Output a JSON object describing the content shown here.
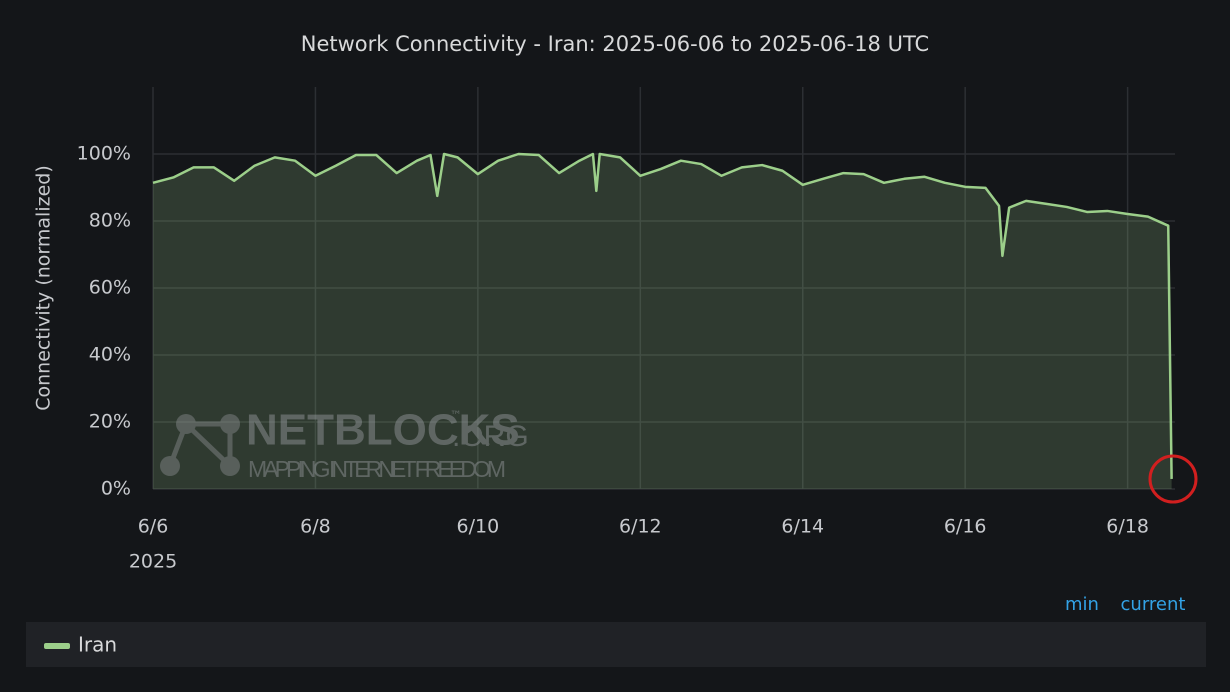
{
  "chart_data": {
    "type": "line",
    "title": "Network Connectivity - Iran: 2025-06-06 to 2025-06-18 UTC",
    "y_label": "Connectivity (normalized)",
    "x_sublabel": "2025",
    "watermark": {
      "name": "NETBLOCKS",
      "suffix": ".ORG",
      "mark": "™",
      "tagline": "MAPPING INTERNET FREEDOM"
    },
    "legend_columns": [
      "min",
      "current"
    ],
    "xlim": [
      "2025-06-06T00:00Z",
      "2025-06-18T14:00Z"
    ],
    "xticks": [
      {
        "value": "2025-06-06T00:00Z",
        "label": "6/6"
      },
      {
        "value": "2025-06-08T00:00Z",
        "label": "6/8"
      },
      {
        "value": "2025-06-10T00:00Z",
        "label": "6/10"
      },
      {
        "value": "2025-06-12T00:00Z",
        "label": "6/12"
      },
      {
        "value": "2025-06-14T00:00Z",
        "label": "6/14"
      },
      {
        "value": "2025-06-16T00:00Z",
        "label": "6/16"
      },
      {
        "value": "2025-06-18T00:00Z",
        "label": "6/18"
      }
    ],
    "ylim": [
      0,
      120
    ],
    "yticks": [
      {
        "value": 0,
        "label": "0%"
      },
      {
        "value": 20,
        "label": "20%"
      },
      {
        "value": 40,
        "label": "40%"
      },
      {
        "value": 60,
        "label": "60%"
      },
      {
        "value": 80,
        "label": "80%"
      },
      {
        "value": 100,
        "label": "100%"
      }
    ],
    "grid": true,
    "x": [
      "2025-06-06T00:00Z",
      "2025-06-06T06:00Z",
      "2025-06-06T12:00Z",
      "2025-06-06T18:00Z",
      "2025-06-07T00:00Z",
      "2025-06-07T06:00Z",
      "2025-06-07T12:00Z",
      "2025-06-07T18:00Z",
      "2025-06-08T00:00Z",
      "2025-06-08T06:00Z",
      "2025-06-08T12:00Z",
      "2025-06-08T18:00Z",
      "2025-06-09T00:00Z",
      "2025-06-09T06:00Z",
      "2025-06-09T10:00Z",
      "2025-06-09T12:00Z",
      "2025-06-09T14:00Z",
      "2025-06-09T18:00Z",
      "2025-06-10T00:00Z",
      "2025-06-10T06:00Z",
      "2025-06-10T12:00Z",
      "2025-06-10T18:00Z",
      "2025-06-11T00:00Z",
      "2025-06-11T06:00Z",
      "2025-06-11T10:00Z",
      "2025-06-11T11:00Z",
      "2025-06-11T12:00Z",
      "2025-06-11T18:00Z",
      "2025-06-12T00:00Z",
      "2025-06-12T06:00Z",
      "2025-06-12T12:00Z",
      "2025-06-12T18:00Z",
      "2025-06-13T00:00Z",
      "2025-06-13T06:00Z",
      "2025-06-13T12:00Z",
      "2025-06-13T18:00Z",
      "2025-06-14T00:00Z",
      "2025-06-14T06:00Z",
      "2025-06-14T12:00Z",
      "2025-06-14T18:00Z",
      "2025-06-15T00:00Z",
      "2025-06-15T06:00Z",
      "2025-06-15T12:00Z",
      "2025-06-15T18:00Z",
      "2025-06-16T00:00Z",
      "2025-06-16T06:00Z",
      "2025-06-16T10:00Z",
      "2025-06-16T11:00Z",
      "2025-06-16T13:00Z",
      "2025-06-16T18:00Z",
      "2025-06-17T00:00Z",
      "2025-06-17T06:00Z",
      "2025-06-17T12:00Z",
      "2025-06-17T18:00Z",
      "2025-06-18T00:00Z",
      "2025-06-18T06:00Z",
      "2025-06-18T10:00Z",
      "2025-06-18T12:00Z",
      "2025-06-18T13:00Z"
    ],
    "series": [
      {
        "name": "Iran",
        "color": "#9ccf8a",
        "values": [
          91.4,
          93,
          96,
          96,
          92,
          96.5,
          99,
          98,
          93.5,
          96.5,
          99.7,
          99.7,
          94.3,
          98,
          99.7,
          87.5,
          100,
          99,
          94,
          98,
          100,
          99.7,
          94.3,
          98,
          100,
          89,
          100,
          99,
          93.5,
          95.5,
          98,
          97,
          93.5,
          96,
          96.7,
          95,
          90.8,
          92.6,
          94.3,
          94,
          91.4,
          92.6,
          93.2,
          91.4,
          90.2,
          89.9,
          84.5,
          69.6,
          84,
          86,
          85.1,
          84.2,
          82.7,
          83,
          82.1,
          81.3,
          79.5,
          78.6,
          3
        ]
      }
    ]
  }
}
